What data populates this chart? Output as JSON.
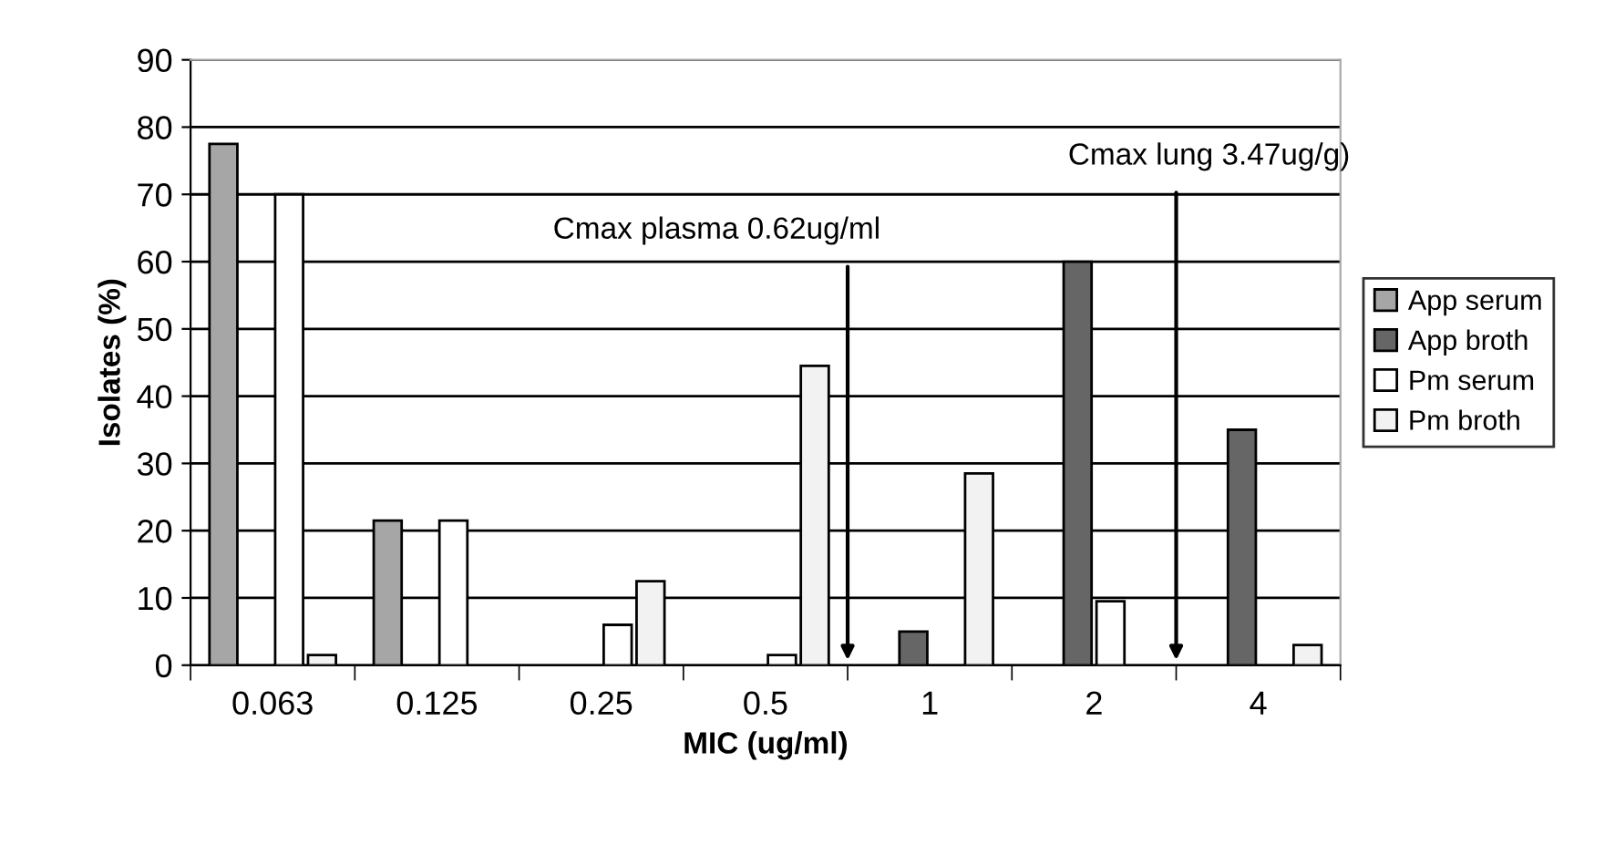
{
  "chart_data": {
    "type": "bar",
    "xlabel": "MIC (ug/ml)",
    "ylabel": "Isolates (%)",
    "categories": [
      "0.063",
      "0.125",
      "0.25",
      "0.5",
      "1",
      "2",
      "4"
    ],
    "series": [
      {
        "name": "App serum",
        "color": "#a6a6a6",
        "values": [
          77.5,
          21.5,
          null,
          null,
          null,
          null,
          null
        ]
      },
      {
        "name": "App broth",
        "color": "#666666",
        "values": [
          null,
          null,
          null,
          null,
          5,
          60,
          35
        ]
      },
      {
        "name": "Pm serum",
        "color": "#ffffff",
        "values": [
          70,
          21.5,
          6,
          1.5,
          null,
          9.5,
          null
        ]
      },
      {
        "name": "Pm broth",
        "color": "#f2f2f2",
        "values": [
          1.5,
          null,
          12.5,
          44.5,
          28.5,
          null,
          3
        ]
      }
    ],
    "ylim": [
      0,
      90
    ],
    "yticks": [
      0,
      10,
      20,
      30,
      40,
      50,
      60,
      70,
      80,
      90
    ],
    "grid": "y",
    "legend": "right",
    "annotations": [
      "Cmax plasma 0.62ug/ml",
      "Cmax lung 3.47ug/g)"
    ]
  }
}
